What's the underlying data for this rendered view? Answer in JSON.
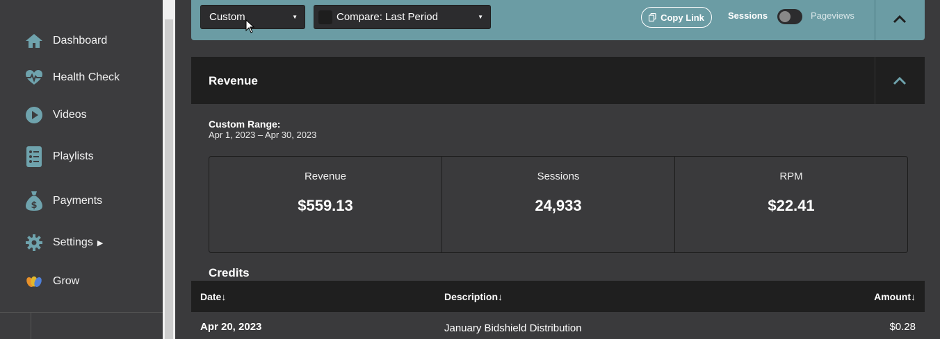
{
  "sidebar": {
    "items": [
      {
        "label": "Dashboard",
        "icon": "home-icon"
      },
      {
        "label": "Health Check",
        "icon": "heartbeat-icon"
      },
      {
        "label": "Videos",
        "icon": "play-icon"
      },
      {
        "label": "Playlists",
        "icon": "list-icon"
      },
      {
        "label": "Payments",
        "icon": "money-bag-icon"
      },
      {
        "label": "Settings",
        "icon": "gear-icon"
      },
      {
        "label": "Grow",
        "icon": "grow-logo-icon"
      }
    ]
  },
  "toolbar": {
    "date_select": "Custom",
    "compare_select": "Compare: Last Period",
    "copy_link": "Copy Link",
    "toggle_left": "Sessions",
    "toggle_right": "Pageviews"
  },
  "revenue": {
    "title": "Revenue",
    "range_title": "Custom Range:",
    "range_dates": "Apr 1, 2023 – Apr 30, 2023",
    "stats": [
      {
        "label": "Revenue",
        "value": "$559.13"
      },
      {
        "label": "Sessions",
        "value": "24,933"
      },
      {
        "label": "RPM",
        "value": "$22.41"
      }
    ]
  },
  "credits": {
    "title": "Credits",
    "columns": [
      "Date↓",
      "Description↓",
      "Amount↓"
    ],
    "rows": [
      {
        "date": "Apr 20, 2023",
        "description": "January Bidshield Distribution",
        "amount": "$0.28"
      }
    ]
  },
  "colors": {
    "accent": "#6b9ca4",
    "icon": "#6fa3ad",
    "dark": "#1f1f1f",
    "background": "#3a3a3c"
  }
}
